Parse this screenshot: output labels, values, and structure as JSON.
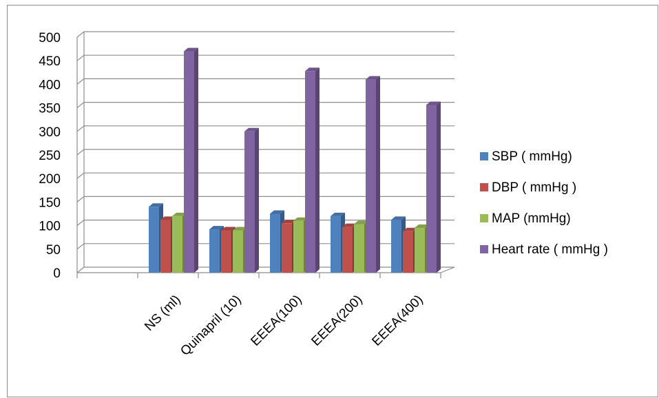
{
  "chart_data": {
    "type": "bar",
    "style": "3d-clustered-column",
    "title": "",
    "xlabel": "",
    "ylabel": "",
    "ylim": [
      0,
      500
    ],
    "y_ticks": [
      0,
      50,
      100,
      150,
      200,
      250,
      300,
      350,
      400,
      450,
      500
    ],
    "grid": true,
    "legend_position": "right",
    "categories": [
      "",
      "NS (ml)",
      "Quinapril (10)",
      "EEEA(100)",
      "EEEA(200)",
      "EEEA(400)"
    ],
    "series": [
      {
        "name": "SBP ( mmHg)",
        "color": "#4F81BD",
        "values": [
          null,
          140,
          92,
          125,
          120,
          112
        ]
      },
      {
        "name": "DBP ( mmHg )",
        "color": "#C0504D",
        "values": [
          null,
          112,
          90,
          105,
          97,
          88
        ]
      },
      {
        "name": "MAP (mmHg)",
        "color": "#9BBB59",
        "values": [
          null,
          120,
          90,
          110,
          103,
          95
        ]
      },
      {
        "name": "Heart rate ( mmHg )",
        "color": "#8064A2",
        "values": [
          null,
          470,
          300,
          428,
          410,
          356
        ]
      }
    ]
  }
}
